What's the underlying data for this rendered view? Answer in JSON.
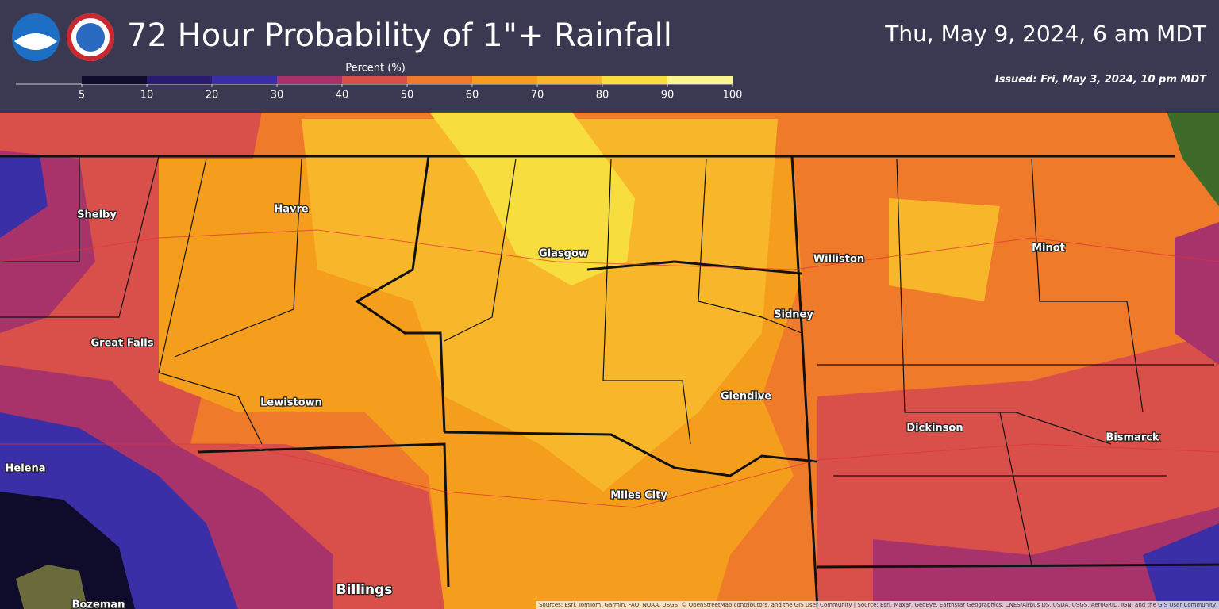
{
  "header": {
    "title": "72 Hour Probability of 1\"+ Rainfall",
    "valid_time": "Thu, May 9, 2024, 6 am MDT",
    "issued": "Issued: Fri, May 3, 2024, 10 pm MDT"
  },
  "legend": {
    "title": "Percent (%)",
    "ticks": [
      5,
      10,
      20,
      30,
      40,
      50,
      60,
      70,
      80,
      90,
      100
    ],
    "colors": [
      "#0e0b2b",
      "#2a1b6e",
      "#3a2fa6",
      "#a8336a",
      "#d9504a",
      "#ef7a2a",
      "#f59d1c",
      "#f8b72b",
      "#f7dd3d",
      "#fbf592"
    ]
  },
  "cities": [
    "Shelby",
    "Havre",
    "Glasgow",
    "Williston",
    "Minot",
    "Sidney",
    "Great Falls",
    "Glendive",
    "Lewistown",
    "Dickinson",
    "Bismarck",
    "Helena",
    "Miles City",
    "Billings",
    "Bozeman"
  ],
  "attribution": "Sources: Esri, TomTom, Garmin, FAO, NOAA, USGS, © OpenStreetMap contributors, and the GIS User Community | Source: Esri, Maxar, GeoEye, Earthstar Geographics, CNES/Airbus DS, USDA, USGS, AeroGRID, IGN, and the GIS User Community"
}
